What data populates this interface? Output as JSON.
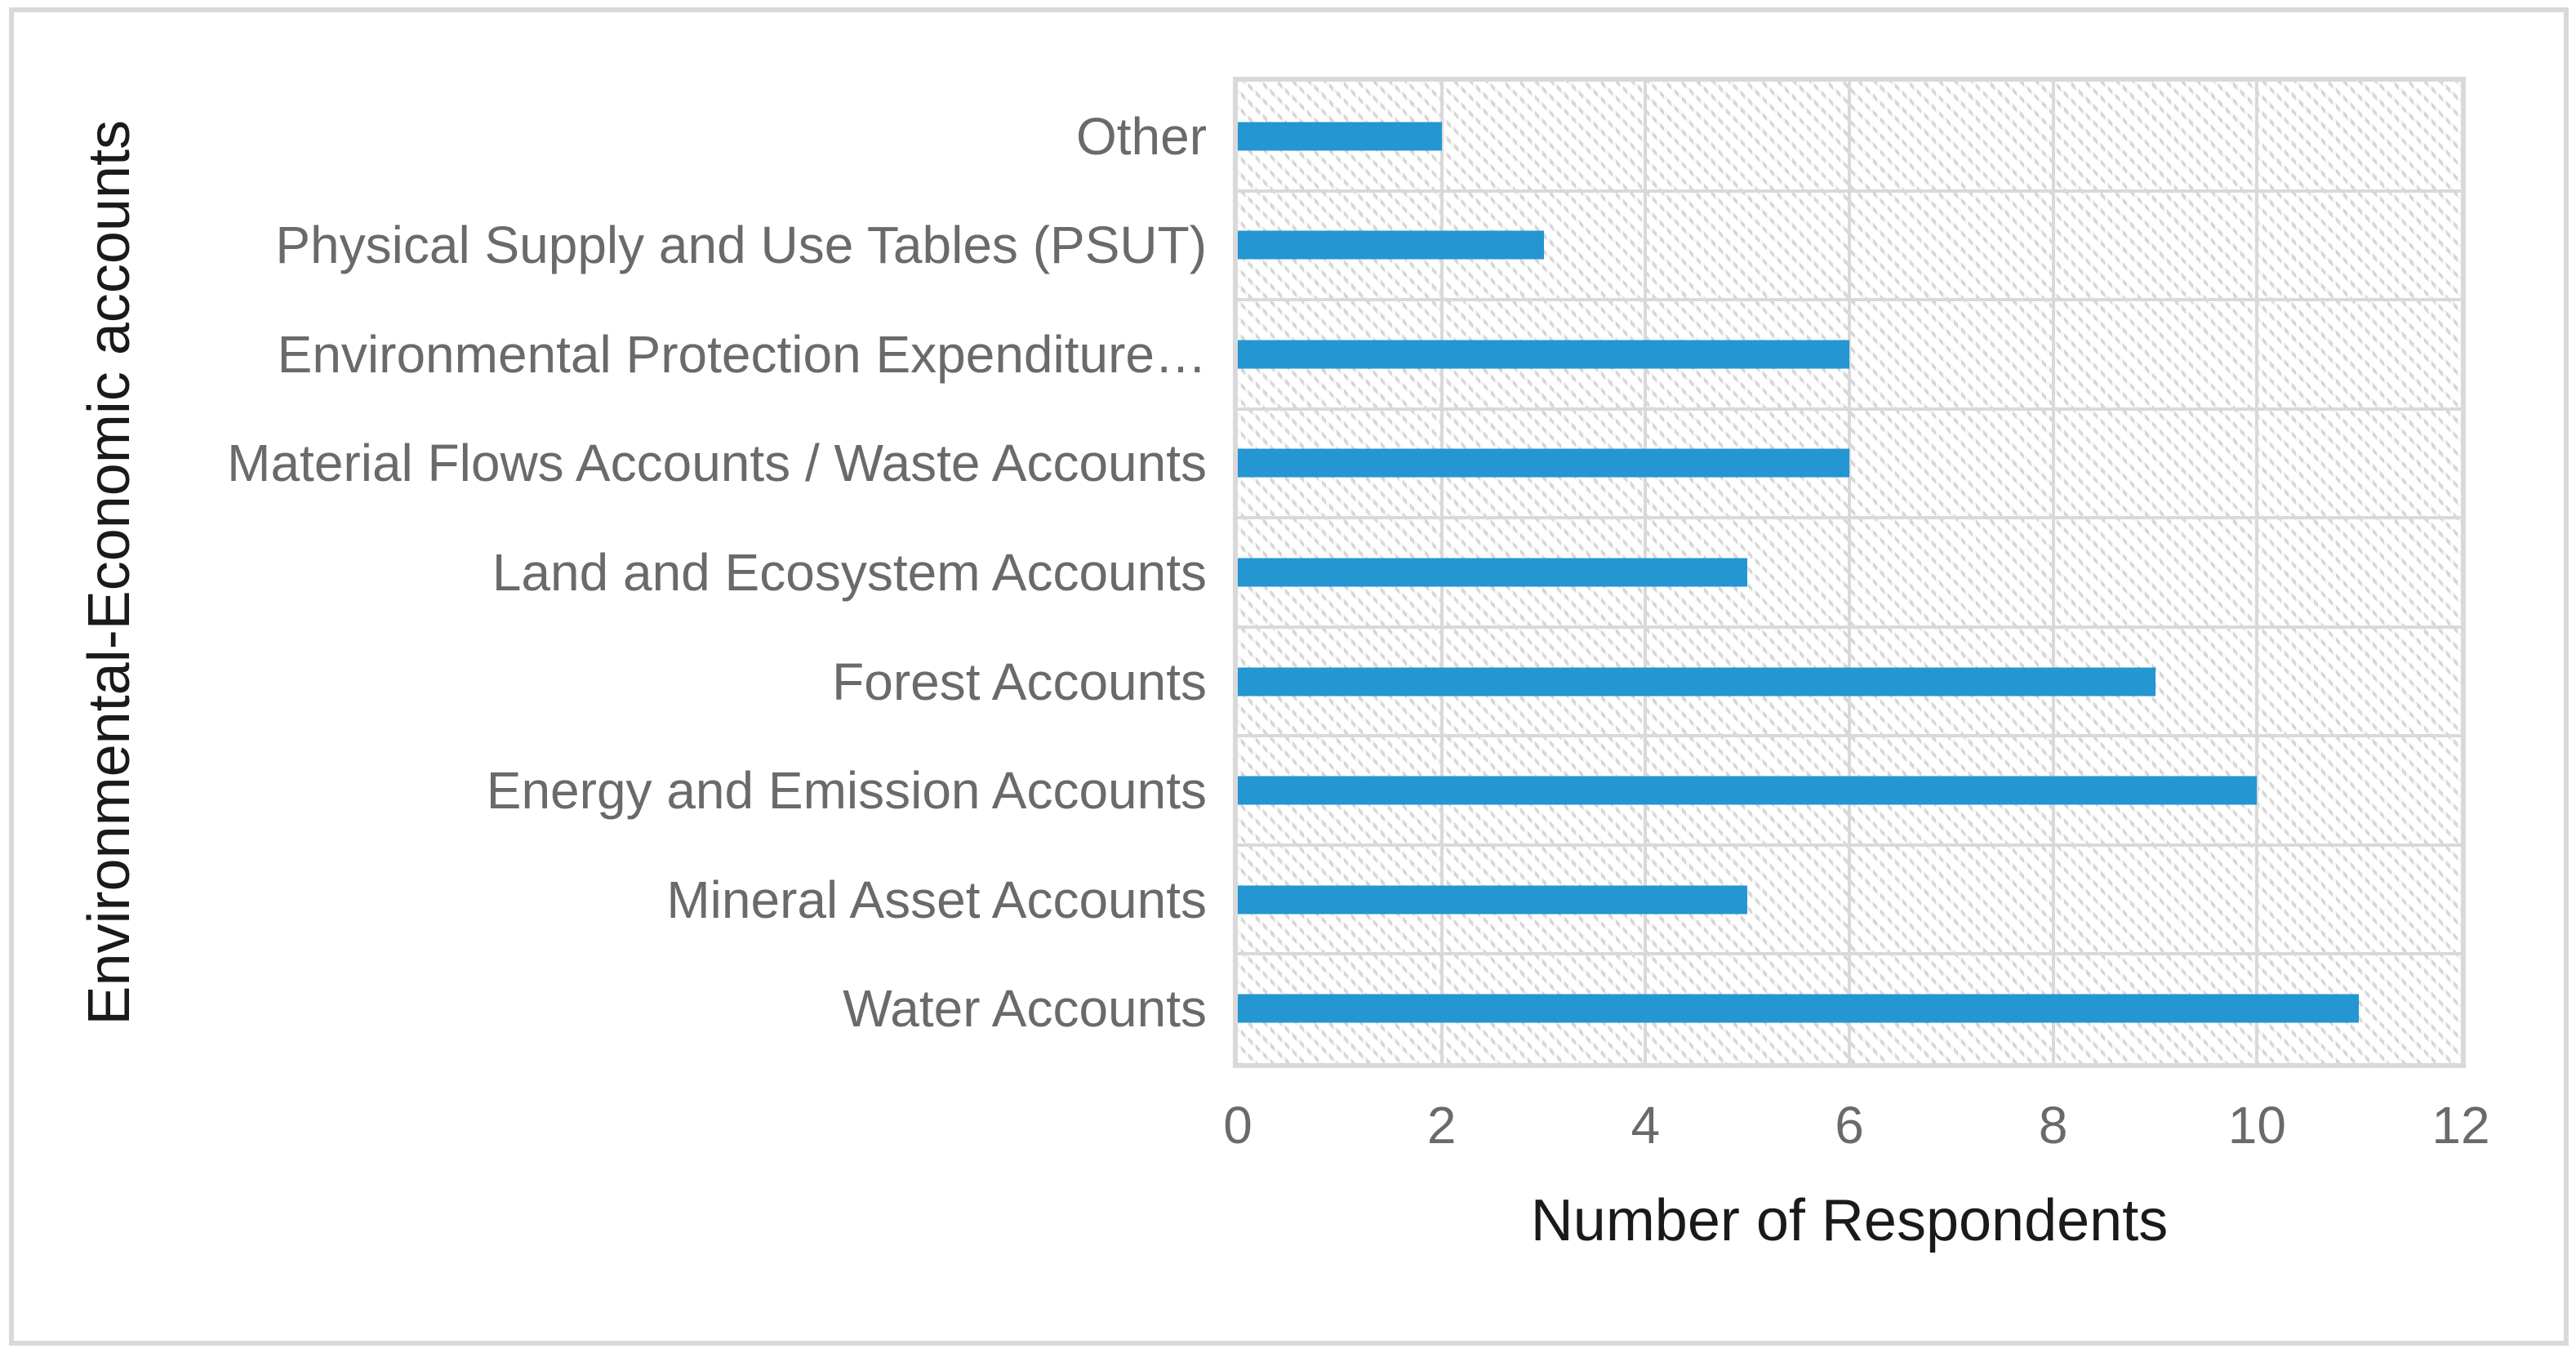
{
  "chart_data": {
    "type": "bar",
    "orientation": "horizontal",
    "categories": [
      "Other",
      "Physical Supply and Use Tables (PSUT)",
      "Environmental Protection Expenditure…",
      "Material Flows Accounts / Waste Accounts",
      "Land and Ecosystem Accounts",
      "Forest Accounts",
      "Energy and Emission Accounts",
      "Mineral Asset Accounts",
      "Water Accounts"
    ],
    "values": [
      2,
      3,
      6,
      6,
      5,
      9,
      10,
      5,
      11
    ],
    "xlabel": "Number of Respondents",
    "ylabel": "Environmental-Economic accounts",
    "xlim": [
      0,
      12
    ],
    "xticks": [
      0,
      2,
      4,
      6,
      8,
      10,
      12
    ],
    "grid": true,
    "legend": "none",
    "plot_fill_pattern": "light-downward-diagonal",
    "colors": {
      "bar": "#2496D2",
      "gridline": "#D9D9D9",
      "frame": "#D9D9D9",
      "pattern": "#D7D7D7",
      "tick_label": "#6A6A6A",
      "axis_title": "#1A1A1A"
    }
  }
}
